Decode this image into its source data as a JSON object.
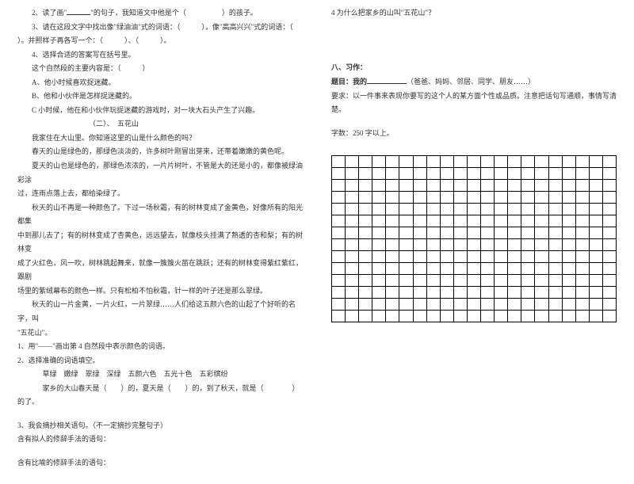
{
  "left": {
    "l1_a": "2、读了画\"",
    "l1_b": "\"的句子，我知道文中他是个（",
    "l1_c": "）的孩子。",
    "l2": "3、请在这段文字中找出像\"绿油油\"式的词语：（　　　），像\"高高兴兴\"式的词语：（",
    "l3": "）。并照样子再各写一个：（　　　）、（　　　）。",
    "l4": "4、选择合适的答案写在括号里。",
    "l5": "这个自然段的主要内容是：（　　　）",
    "l6": "A、他小时候喜欢捉迷藏。",
    "l7": "B、他和小伙伴是怎样捉迷藏的。",
    "l8": "C 小时候，他在和小伙伴玩捉迷藏的游戏时，对一块大石头产生了兴趣。",
    "l9": "（二）、　五花山",
    "l10": "我家住在大山里。你知道这里的山是什么颜色的吗？",
    "l11": "春天的山是绿色的，那绿色淡淡的，许多树叶刚冒出芽来，还带着嫩嫩的黄色呢。",
    "l12": "夏天的山也是绿色的，那绿色浓浓的，一片片树叶，不管是大的还是小的，都像被绿油彩涂",
    "l12b": "过，连雨点落上去，都给染绿了。",
    "l13": "秋天的山不再是一种颜色了。下过一场秋霜，有的树林变成了金黄色，好像所有的阳光都集",
    "l13b": "中到那儿去了；有的树林变成了杏黄色，远远望去，就像枝头挂满了熟透的杏和梨；有的树林变",
    "l13c": "成了火红色，风一吹，树林跳起舞来，就像一簇簇火苗在跳跃；还有的树林变得紫红紫红，跟剧",
    "l13d": "场里的紫绒幕布的颜色一样。只有松柏不怕秋霜，针一样的叶子还是那么翠绿。",
    "l14": "秋天的山一片金黄，一片火红，一片翠绿……人们给这五颜六色的山起了个好听的名字，叫",
    "l14b": "\"五花山\"。",
    "q1": "1、用\"——\"画出第 4 自然段中表示颜色的词语。",
    "q2": "2、选择准确的词语填空。",
    "q2a": "草绿　嫩绿　翠绿　深绿　五颜六色　五光十色　五彩缤纷",
    "q2b": "家乡的大山春天是（　　）的，夏天是（　　）的，到了秋天，就是（　　　　）的了。",
    "q3": "3、我会摘抄相关语句。（不一定摘抄完整句子）",
    "q3a": "含有拟人的修辞手法的语句：",
    "q3b": "含有比喻的修辞手法的语句：",
    "q3line": "　"
  },
  "right": {
    "q4": "4 为什么把家乡的山叫\"五花山\"？",
    "section": "八、习作：",
    "topic_a": "题目：我的",
    "topic_b": "（爸爸、妈妈、邻居、同学、朋友……）",
    "yaoqiu": "要求：以一件事来表现你要写的这个人的某方面个性或品质。注意把话句写通顺，事情写清楚。",
    "count": "字数：250 字以上。",
    "grid": {
      "rows": 14,
      "cols": 21
    }
  },
  "style": {
    "bg": "#ffffff",
    "text": "#333333",
    "grid_border": "#000000",
    "fontsize": 9
  }
}
